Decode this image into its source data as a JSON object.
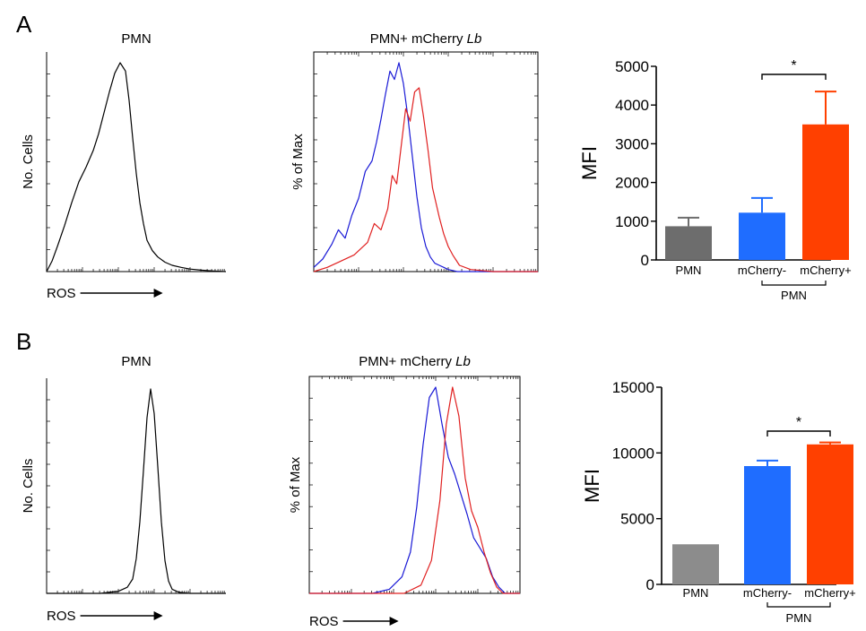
{
  "figure": {
    "panel_a_letter": "A",
    "panel_b_letter": "B"
  },
  "chart_data": [
    {
      "panel": "A",
      "type": "histogram",
      "title": "PMN",
      "ylabel": "No.  Cells",
      "xlabel": "ROS",
      "xscale": "log",
      "series": [
        {
          "color": "#000000",
          "x": [
            0.0,
            0.03,
            0.06,
            0.1,
            0.14,
            0.18,
            0.22,
            0.26,
            0.29,
            0.32,
            0.35,
            0.38,
            0.41,
            0.44,
            0.46,
            0.48,
            0.5,
            0.52,
            0.54,
            0.56,
            0.59,
            0.62,
            0.66,
            0.7,
            0.75,
            0.8,
            0.86,
            0.93,
            1.0
          ],
          "y": [
            0.0,
            0.05,
            0.12,
            0.22,
            0.33,
            0.43,
            0.5,
            0.58,
            0.66,
            0.76,
            0.86,
            0.95,
            1.0,
            0.96,
            0.82,
            0.64,
            0.47,
            0.33,
            0.23,
            0.15,
            0.1,
            0.07,
            0.045,
            0.03,
            0.02,
            0.012,
            0.007,
            0.003,
            0.0
          ]
        }
      ]
    },
    {
      "panel": "A",
      "type": "histogram",
      "title": "PMN+ mCherry ",
      "title_italic": "Lb",
      "ylabel": "% of Max",
      "xscale": "log",
      "series": [
        {
          "color": "#1a1ad6",
          "x": [
            0.0,
            0.04,
            0.08,
            0.11,
            0.14,
            0.17,
            0.2,
            0.23,
            0.26,
            0.28,
            0.3,
            0.32,
            0.34,
            0.36,
            0.38,
            0.4,
            0.42,
            0.44,
            0.46,
            0.48,
            0.5,
            0.52,
            0.54,
            0.56,
            0.58,
            0.6,
            0.64,
            0.7,
            0.8,
            0.9,
            1.0
          ],
          "y": [
            0.02,
            0.06,
            0.13,
            0.2,
            0.16,
            0.27,
            0.35,
            0.48,
            0.53,
            0.62,
            0.73,
            0.85,
            0.96,
            0.92,
            1.0,
            0.9,
            0.74,
            0.55,
            0.36,
            0.21,
            0.12,
            0.07,
            0.04,
            0.03,
            0.02,
            0.01,
            0.0,
            0.0,
            0.0,
            0.0,
            0.0
          ]
        },
        {
          "color": "#e02020",
          "x": [
            0.0,
            0.06,
            0.12,
            0.18,
            0.24,
            0.27,
            0.3,
            0.33,
            0.35,
            0.37,
            0.39,
            0.41,
            0.43,
            0.45,
            0.47,
            0.49,
            0.51,
            0.53,
            0.56,
            0.58,
            0.6,
            0.62,
            0.65,
            0.7,
            0.8,
            0.9,
            1.0
          ],
          "y": [
            0.0,
            0.02,
            0.05,
            0.08,
            0.14,
            0.23,
            0.2,
            0.3,
            0.46,
            0.42,
            0.6,
            0.78,
            0.72,
            0.86,
            0.88,
            0.74,
            0.58,
            0.4,
            0.26,
            0.18,
            0.12,
            0.08,
            0.03,
            0.01,
            0.0,
            0.0,
            0.0
          ]
        }
      ]
    },
    {
      "panel": "A",
      "type": "bar",
      "ylabel": "MFI",
      "ylim": [
        0,
        5000
      ],
      "yticks": [
        0,
        1000,
        2000,
        3000,
        4000,
        5000
      ],
      "yticklabels": [
        "0",
        "1000",
        "2000",
        "3000",
        "4000",
        "5000"
      ],
      "categories": [
        "PMN",
        "mCherry-",
        "mCherry+"
      ],
      "values": [
        870,
        1220,
        3500
      ],
      "errors": [
        220,
        380,
        850
      ],
      "colors": [
        "#6d6d6d",
        "#1f6dff",
        "#ff4000"
      ],
      "group_label": "PMN",
      "significance": "*"
    },
    {
      "panel": "B",
      "type": "histogram",
      "title": "PMN",
      "ylabel": "No.  Cells",
      "xlabel": "ROS",
      "xscale": "log",
      "series": [
        {
          "color": "#000000",
          "x": [
            0.0,
            0.3,
            0.4,
            0.45,
            0.48,
            0.5,
            0.52,
            0.54,
            0.56,
            0.58,
            0.6,
            0.62,
            0.64,
            0.66,
            0.68,
            0.7,
            0.74,
            0.8,
            1.0
          ],
          "y": [
            0.0,
            0.0,
            0.01,
            0.03,
            0.07,
            0.17,
            0.35,
            0.6,
            0.86,
            1.0,
            0.88,
            0.62,
            0.35,
            0.16,
            0.06,
            0.02,
            0.005,
            0.0,
            0.0
          ]
        }
      ]
    },
    {
      "panel": "B",
      "type": "histogram",
      "title": "PMN+ mCherry ",
      "title_italic": "Lb",
      "ylabel": "% of Max",
      "xlabel": "ROS",
      "xscale": "log",
      "series": [
        {
          "color": "#1a1ad6",
          "x": [
            0.0,
            0.3,
            0.38,
            0.44,
            0.48,
            0.51,
            0.54,
            0.57,
            0.6,
            0.63,
            0.66,
            0.69,
            0.72,
            0.75,
            0.78,
            0.81,
            0.84,
            0.87,
            0.9,
            0.93,
            1.0
          ],
          "y": [
            0.0,
            0.0,
            0.02,
            0.08,
            0.2,
            0.42,
            0.72,
            0.95,
            1.0,
            0.82,
            0.66,
            0.58,
            0.48,
            0.38,
            0.27,
            0.22,
            0.17,
            0.08,
            0.03,
            0.0,
            0.0
          ]
        },
        {
          "color": "#e02020",
          "x": [
            0.0,
            0.45,
            0.53,
            0.58,
            0.62,
            0.65,
            0.68,
            0.71,
            0.74,
            0.77,
            0.8,
            0.83,
            0.86,
            0.89,
            0.92,
            1.0
          ],
          "y": [
            0.0,
            0.0,
            0.04,
            0.16,
            0.45,
            0.82,
            1.0,
            0.86,
            0.56,
            0.4,
            0.32,
            0.2,
            0.1,
            0.03,
            0.0,
            0.0
          ]
        }
      ]
    },
    {
      "panel": "B",
      "type": "bar",
      "ylabel": "MFI",
      "ylim": [
        0,
        15000
      ],
      "yticks": [
        0,
        5000,
        10000,
        15000
      ],
      "yticklabels": [
        "0",
        "5000",
        "10000",
        "15000"
      ],
      "categories": [
        "PMN",
        "mCherry-",
        "mCherry+"
      ],
      "values": [
        3050,
        9000,
        10650
      ],
      "errors": [
        0,
        420,
        150
      ],
      "colors": [
        "#8c8c8c",
        "#1f6dff",
        "#ff4000"
      ],
      "group_label": "PMN",
      "significance": "*"
    }
  ]
}
